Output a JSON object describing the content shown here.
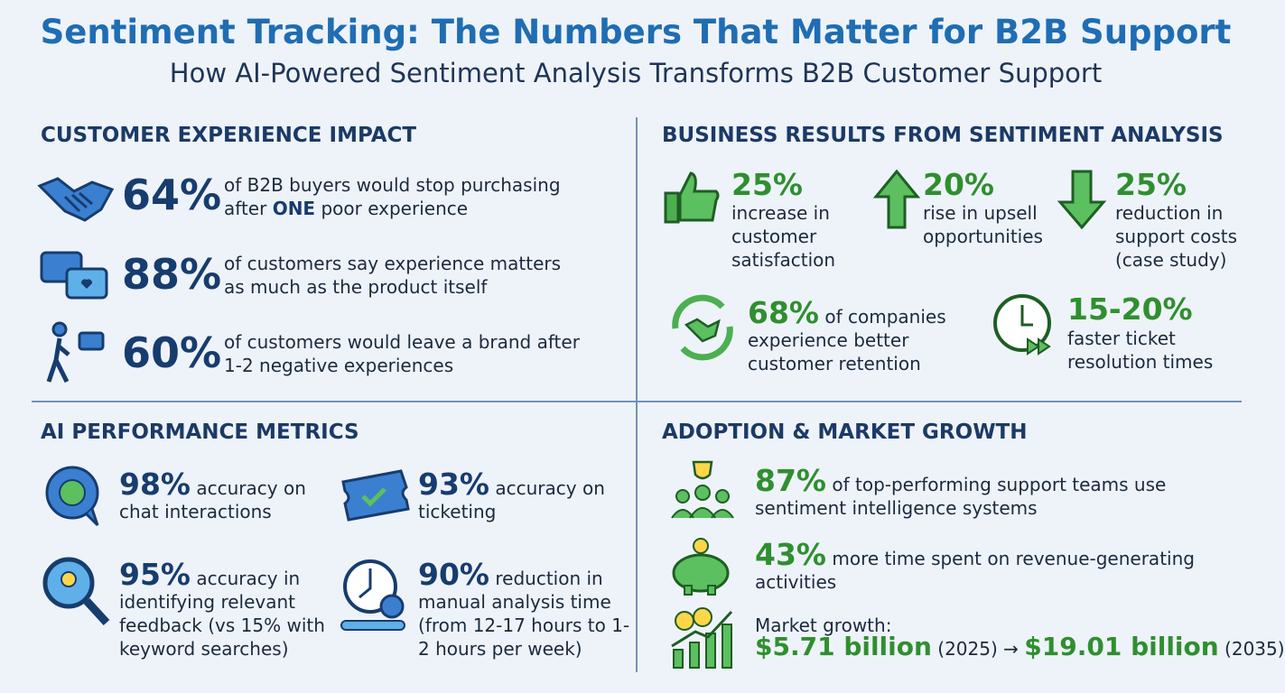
{
  "header": {
    "title": "Sentiment Tracking: The Numbers That Matter for B2B Support",
    "subtitle": "How AI-Powered Sentiment Analysis Transforms B2B Customer Support"
  },
  "sections": [
    {
      "heading": "CUSTOMER EXPERIENCE IMPACT",
      "items": [
        {
          "stat": "64%",
          "text": "of B2B buyers would stop purchasing after",
          "emphasis": "ONE",
          "text_after": "poor experience"
        },
        {
          "stat": "88%",
          "text": "of customers say experience matters as much as the product itself"
        },
        {
          "stat": "60%",
          "text": "of customers would leave a brand after 1-2 negative experiences"
        }
      ]
    },
    {
      "heading": "BUSINESS RESULTS FROM SENTIMENT ANALYSIS",
      "items": [
        {
          "stat": "25%",
          "text": "increase in customer satisfaction"
        },
        {
          "stat": "20%",
          "text": "rise in upsell opportunities"
        },
        {
          "stat": "25%",
          "text": "reduction in support costs (case study)"
        },
        {
          "stat": "68%",
          "text": "of companies experience better customer retention"
        },
        {
          "stat": "15-20%",
          "text": "faster ticket resolution times"
        }
      ]
    },
    {
      "heading": "AI PERFORMANCE METRICS",
      "items": [
        {
          "stat": "98%",
          "text": "accuracy on chat interactions"
        },
        {
          "stat": "93%",
          "text": "accuracy on ticketing"
        },
        {
          "stat": "95%",
          "text": "accuracy in identifying relevant feedback (vs 15% with keyword searches)"
        },
        {
          "stat": "90%",
          "text": "reduction in manual analysis time (from 12-17 hours to 1-2 hours per week)"
        }
      ]
    },
    {
      "heading": "ADOPTION & MARKET GROWTH",
      "items": [
        {
          "stat": "87%",
          "text": "of top-performing support teams use sentiment intelligence systems"
        },
        {
          "stat": "43%",
          "text": "more time spent on revenue-generating activities"
        }
      ],
      "market_growth": {
        "label": "Market growth:",
        "start_value": "$5.71 billion",
        "start_year": "(2025)",
        "arrow": "→",
        "end_value": "$19.01 billion",
        "end_year": "(2035)"
      }
    }
  ]
}
